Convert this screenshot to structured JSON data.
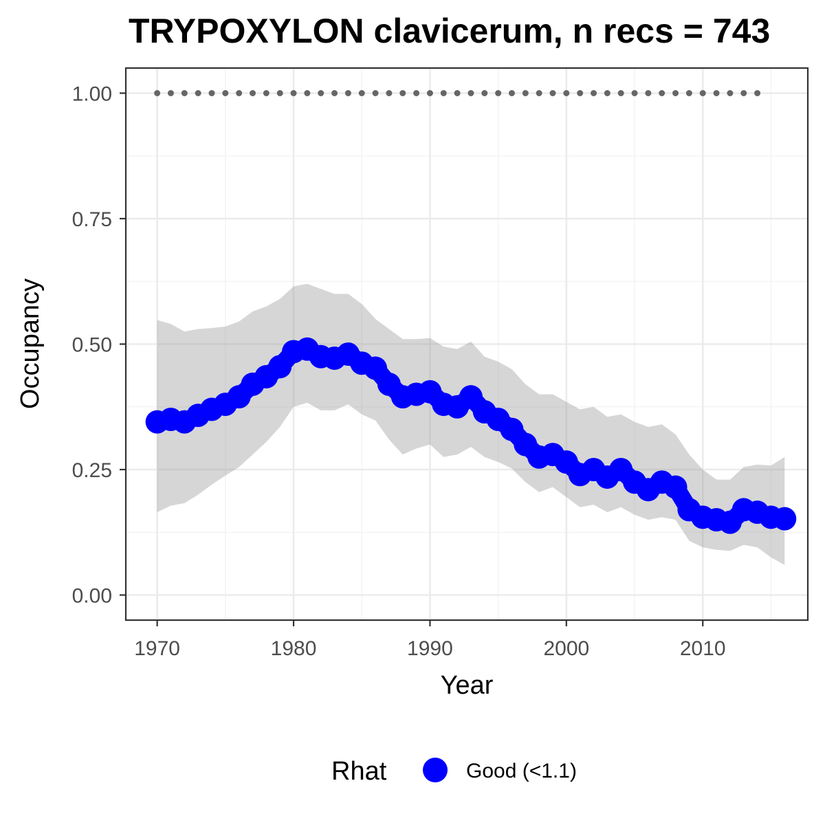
{
  "chart_data": {
    "type": "line",
    "title": "TRYPOXYLON clavicerum, n recs = 743",
    "xlabel": "Year",
    "ylabel": "Occupancy",
    "xlim": [
      1967.7,
      2017.7
    ],
    "ylim": [
      -0.05,
      1.05
    ],
    "x_ticks": [
      1970,
      1980,
      1990,
      2000,
      2010
    ],
    "x_tick_labels": [
      "1970",
      "1980",
      "1990",
      "2000",
      "2010"
    ],
    "y_ticks": [
      0,
      0.25,
      0.5,
      0.75,
      1.0
    ],
    "y_tick_labels": [
      "0.00",
      "0.25",
      "0.50",
      "0.75",
      "1.00"
    ],
    "grid": true,
    "x": [
      1970,
      1971,
      1972,
      1973,
      1974,
      1975,
      1976,
      1977,
      1978,
      1979,
      1980,
      1981,
      1982,
      1983,
      1984,
      1985,
      1986,
      1987,
      1988,
      1989,
      1990,
      1991,
      1992,
      1993,
      1994,
      1995,
      1996,
      1997,
      1998,
      1999,
      2000,
      2001,
      2002,
      2003,
      2004,
      2005,
      2006,
      2007,
      2008,
      2009,
      2010,
      2011,
      2012,
      2013,
      2014,
      2015,
      2016
    ],
    "series": [
      {
        "name": "Occupancy (mean)",
        "color": "#0000ff",
        "values": [
          0.345,
          0.35,
          0.345,
          0.358,
          0.37,
          0.38,
          0.395,
          0.42,
          0.435,
          0.455,
          0.485,
          0.49,
          0.475,
          0.472,
          0.48,
          0.462,
          0.452,
          0.42,
          0.395,
          0.4,
          0.405,
          0.38,
          0.375,
          0.395,
          0.365,
          0.35,
          0.33,
          0.3,
          0.275,
          0.28,
          0.265,
          0.24,
          0.25,
          0.235,
          0.25,
          0.225,
          0.21,
          0.225,
          0.215,
          0.17,
          0.155,
          0.15,
          0.145,
          0.17,
          0.165,
          0.155,
          0.152
        ]
      },
      {
        "name": "Upper 95% CI",
        "values": [
          0.548,
          0.54,
          0.525,
          0.53,
          0.532,
          0.535,
          0.545,
          0.565,
          0.575,
          0.59,
          0.615,
          0.62,
          0.61,
          0.6,
          0.6,
          0.58,
          0.55,
          0.53,
          0.51,
          0.51,
          0.512,
          0.495,
          0.49,
          0.505,
          0.475,
          0.465,
          0.45,
          0.42,
          0.4,
          0.4,
          0.385,
          0.37,
          0.375,
          0.355,
          0.36,
          0.345,
          0.335,
          0.34,
          0.32,
          0.28,
          0.25,
          0.23,
          0.23,
          0.255,
          0.26,
          0.258,
          0.275
        ]
      },
      {
        "name": "Lower 95% CI",
        "values": [
          0.165,
          0.178,
          0.183,
          0.2,
          0.22,
          0.238,
          0.255,
          0.28,
          0.305,
          0.335,
          0.375,
          0.383,
          0.368,
          0.368,
          0.38,
          0.36,
          0.348,
          0.31,
          0.28,
          0.292,
          0.3,
          0.275,
          0.28,
          0.295,
          0.275,
          0.265,
          0.252,
          0.225,
          0.205,
          0.215,
          0.195,
          0.175,
          0.18,
          0.165,
          0.175,
          0.16,
          0.15,
          0.155,
          0.15,
          0.108,
          0.095,
          0.09,
          0.088,
          0.1,
          0.095,
          0.075,
          0.06
        ]
      },
      {
        "name": "Rhat dotted line",
        "color": "#666666",
        "x_range": [
          1970,
          2014
        ],
        "values_constant": 1.0
      }
    ],
    "legend": {
      "position": "bottom",
      "title": "Rhat",
      "entries": [
        {
          "label": "Good (<1.1)",
          "color": "#0000ff"
        }
      ]
    }
  }
}
